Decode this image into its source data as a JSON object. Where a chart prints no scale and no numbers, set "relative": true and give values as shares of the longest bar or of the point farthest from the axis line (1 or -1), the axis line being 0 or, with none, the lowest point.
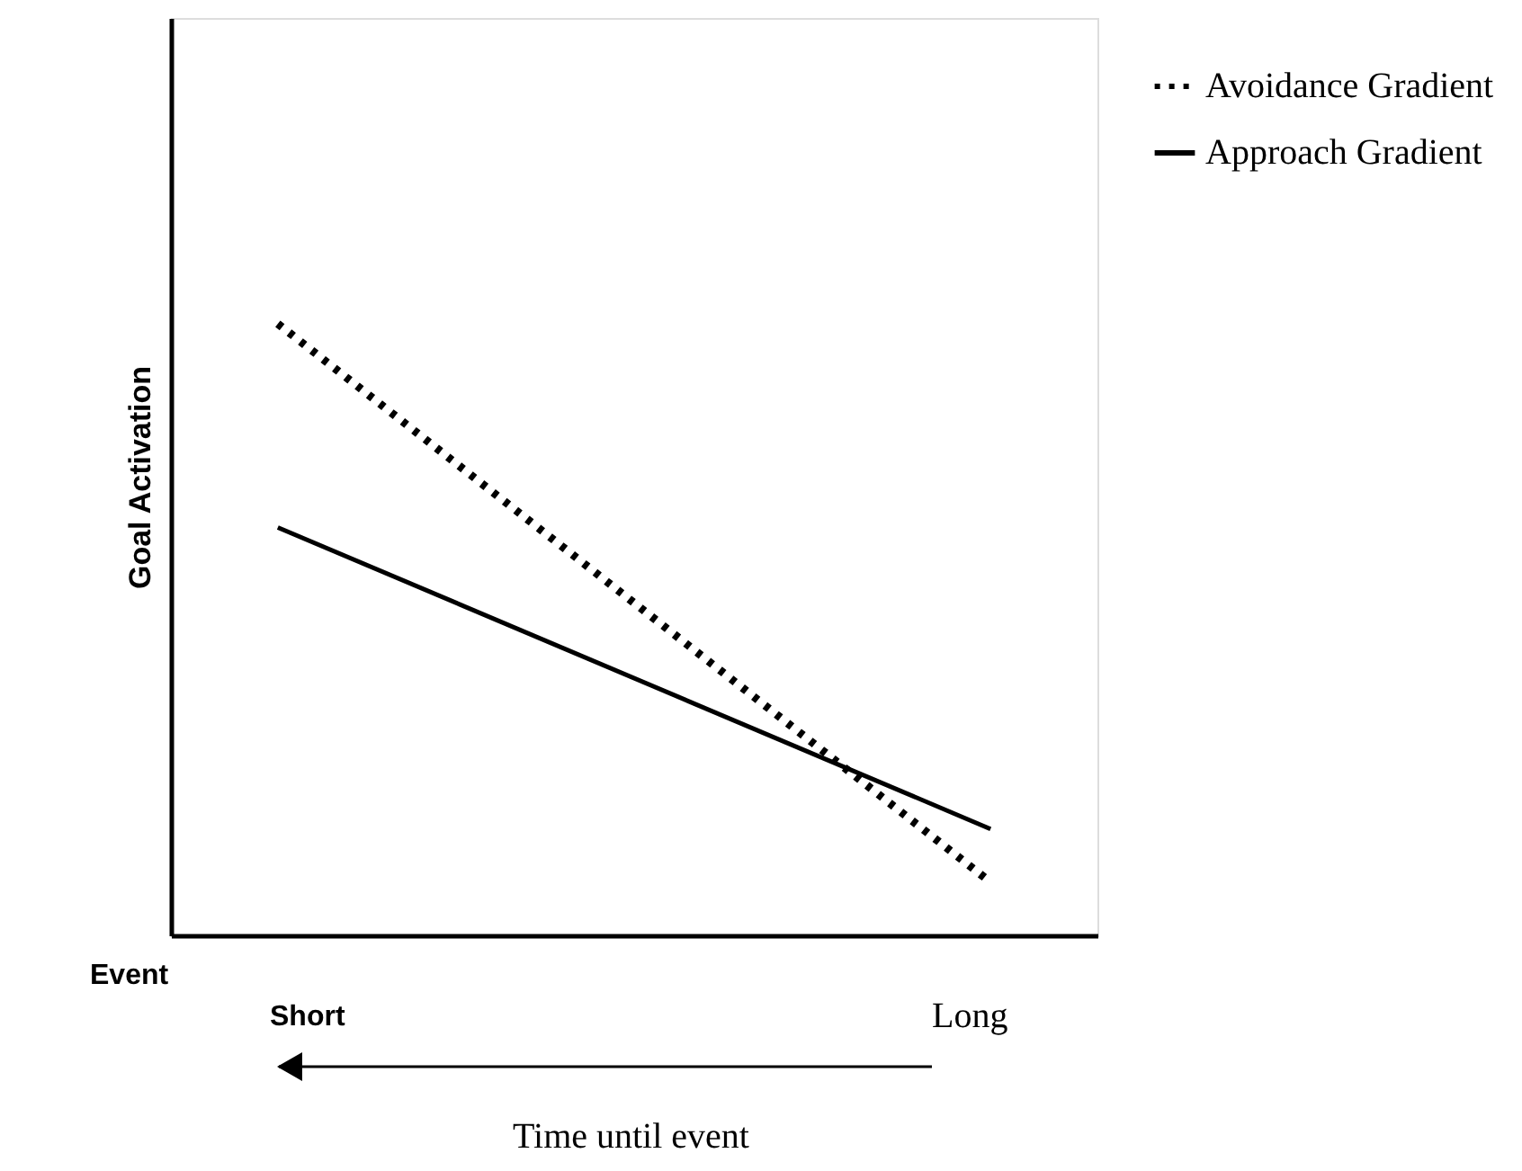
{
  "chart_data": {
    "type": "line",
    "relative": true,
    "ylabel": "Goal Activation",
    "categories": [
      null,
      null
    ],
    "series": [
      {
        "name": "Avoidance Gradient",
        "color": "#000000",
        "line_style": "dotted",
        "values": [
          1,
          0.087
        ]
      },
      {
        "name": "Approach Gradient",
        "color": "#000000",
        "line_style": "solid",
        "values": [
          0.667,
          0.174
        ]
      }
    ],
    "annotations": [
      "Event",
      "Short",
      "Long",
      "Time until event"
    ],
    "legend": "top right",
    "grid": false
  }
}
